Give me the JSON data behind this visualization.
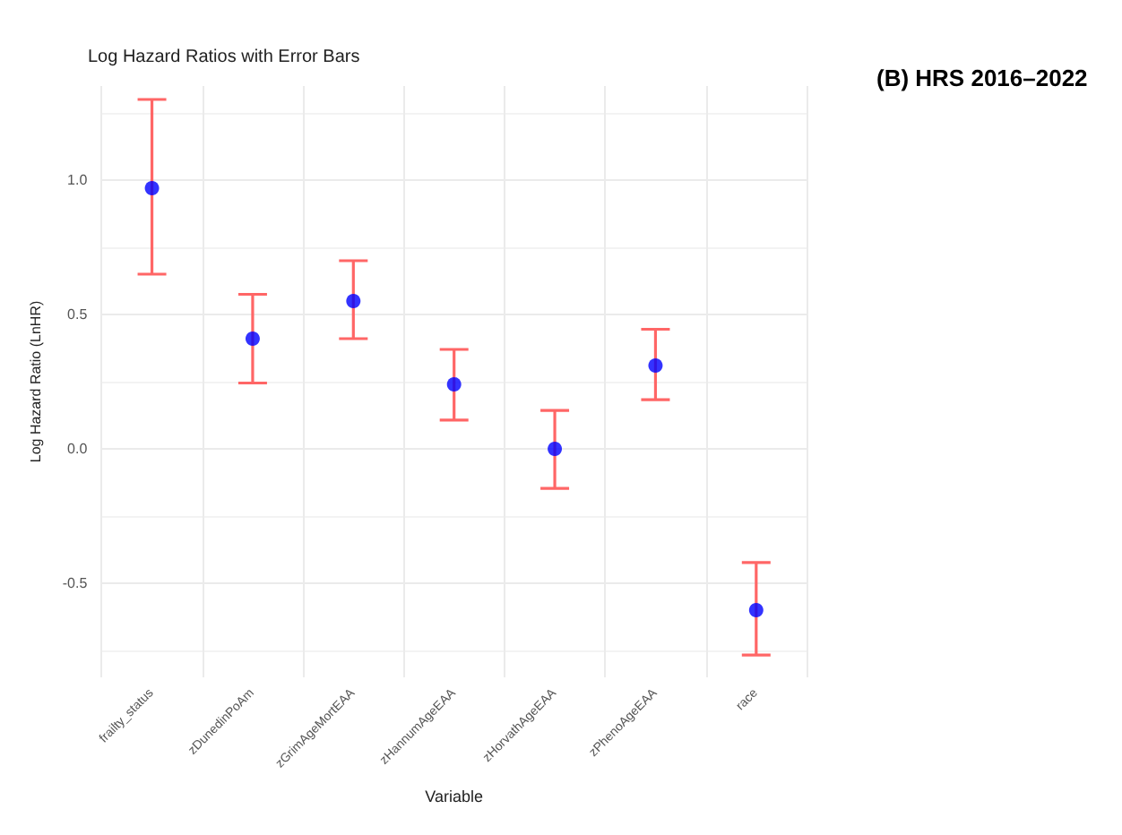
{
  "chart_data": {
    "type": "scatter",
    "title": "Log Hazard Ratios with Error Bars",
    "subtitle": "(B) HRS 2016–2022",
    "xlabel": "Variable",
    "ylabel": "Log Hazard Ratio (LnHR)",
    "categories": [
      "frailty_status",
      "zDunedinPoAm",
      "zGrimAgeMortEAA",
      "zHannumAgeEAA",
      "zHorvathAgeEAA",
      "zPhenoAgeEAA",
      "race"
    ],
    "series": [
      {
        "color": "#0000ff",
        "values": [
          0.97,
          0.41,
          0.55,
          0.24,
          0.0,
          0.31,
          -0.6
        ],
        "errors": [
          [
            0.65,
            1.3
          ],
          [
            0.245,
            0.575
          ],
          [
            0.41,
            0.7
          ],
          [
            0.107,
            0.37
          ],
          [
            -0.147,
            0.143
          ],
          [
            0.183,
            0.445
          ],
          [
            -0.767,
            -0.423
          ]
        ]
      }
    ],
    "ylim": [
      -0.85,
      1.35
    ],
    "yticks": [
      {
        "value": -0.5,
        "label": "-0.5"
      },
      {
        "value": 0,
        "label": "0.0"
      },
      {
        "value": 0.5,
        "label": "0.5"
      },
      {
        "value": 1,
        "label": "1.0"
      }
    ],
    "grid": true,
    "marker": "circle"
  }
}
